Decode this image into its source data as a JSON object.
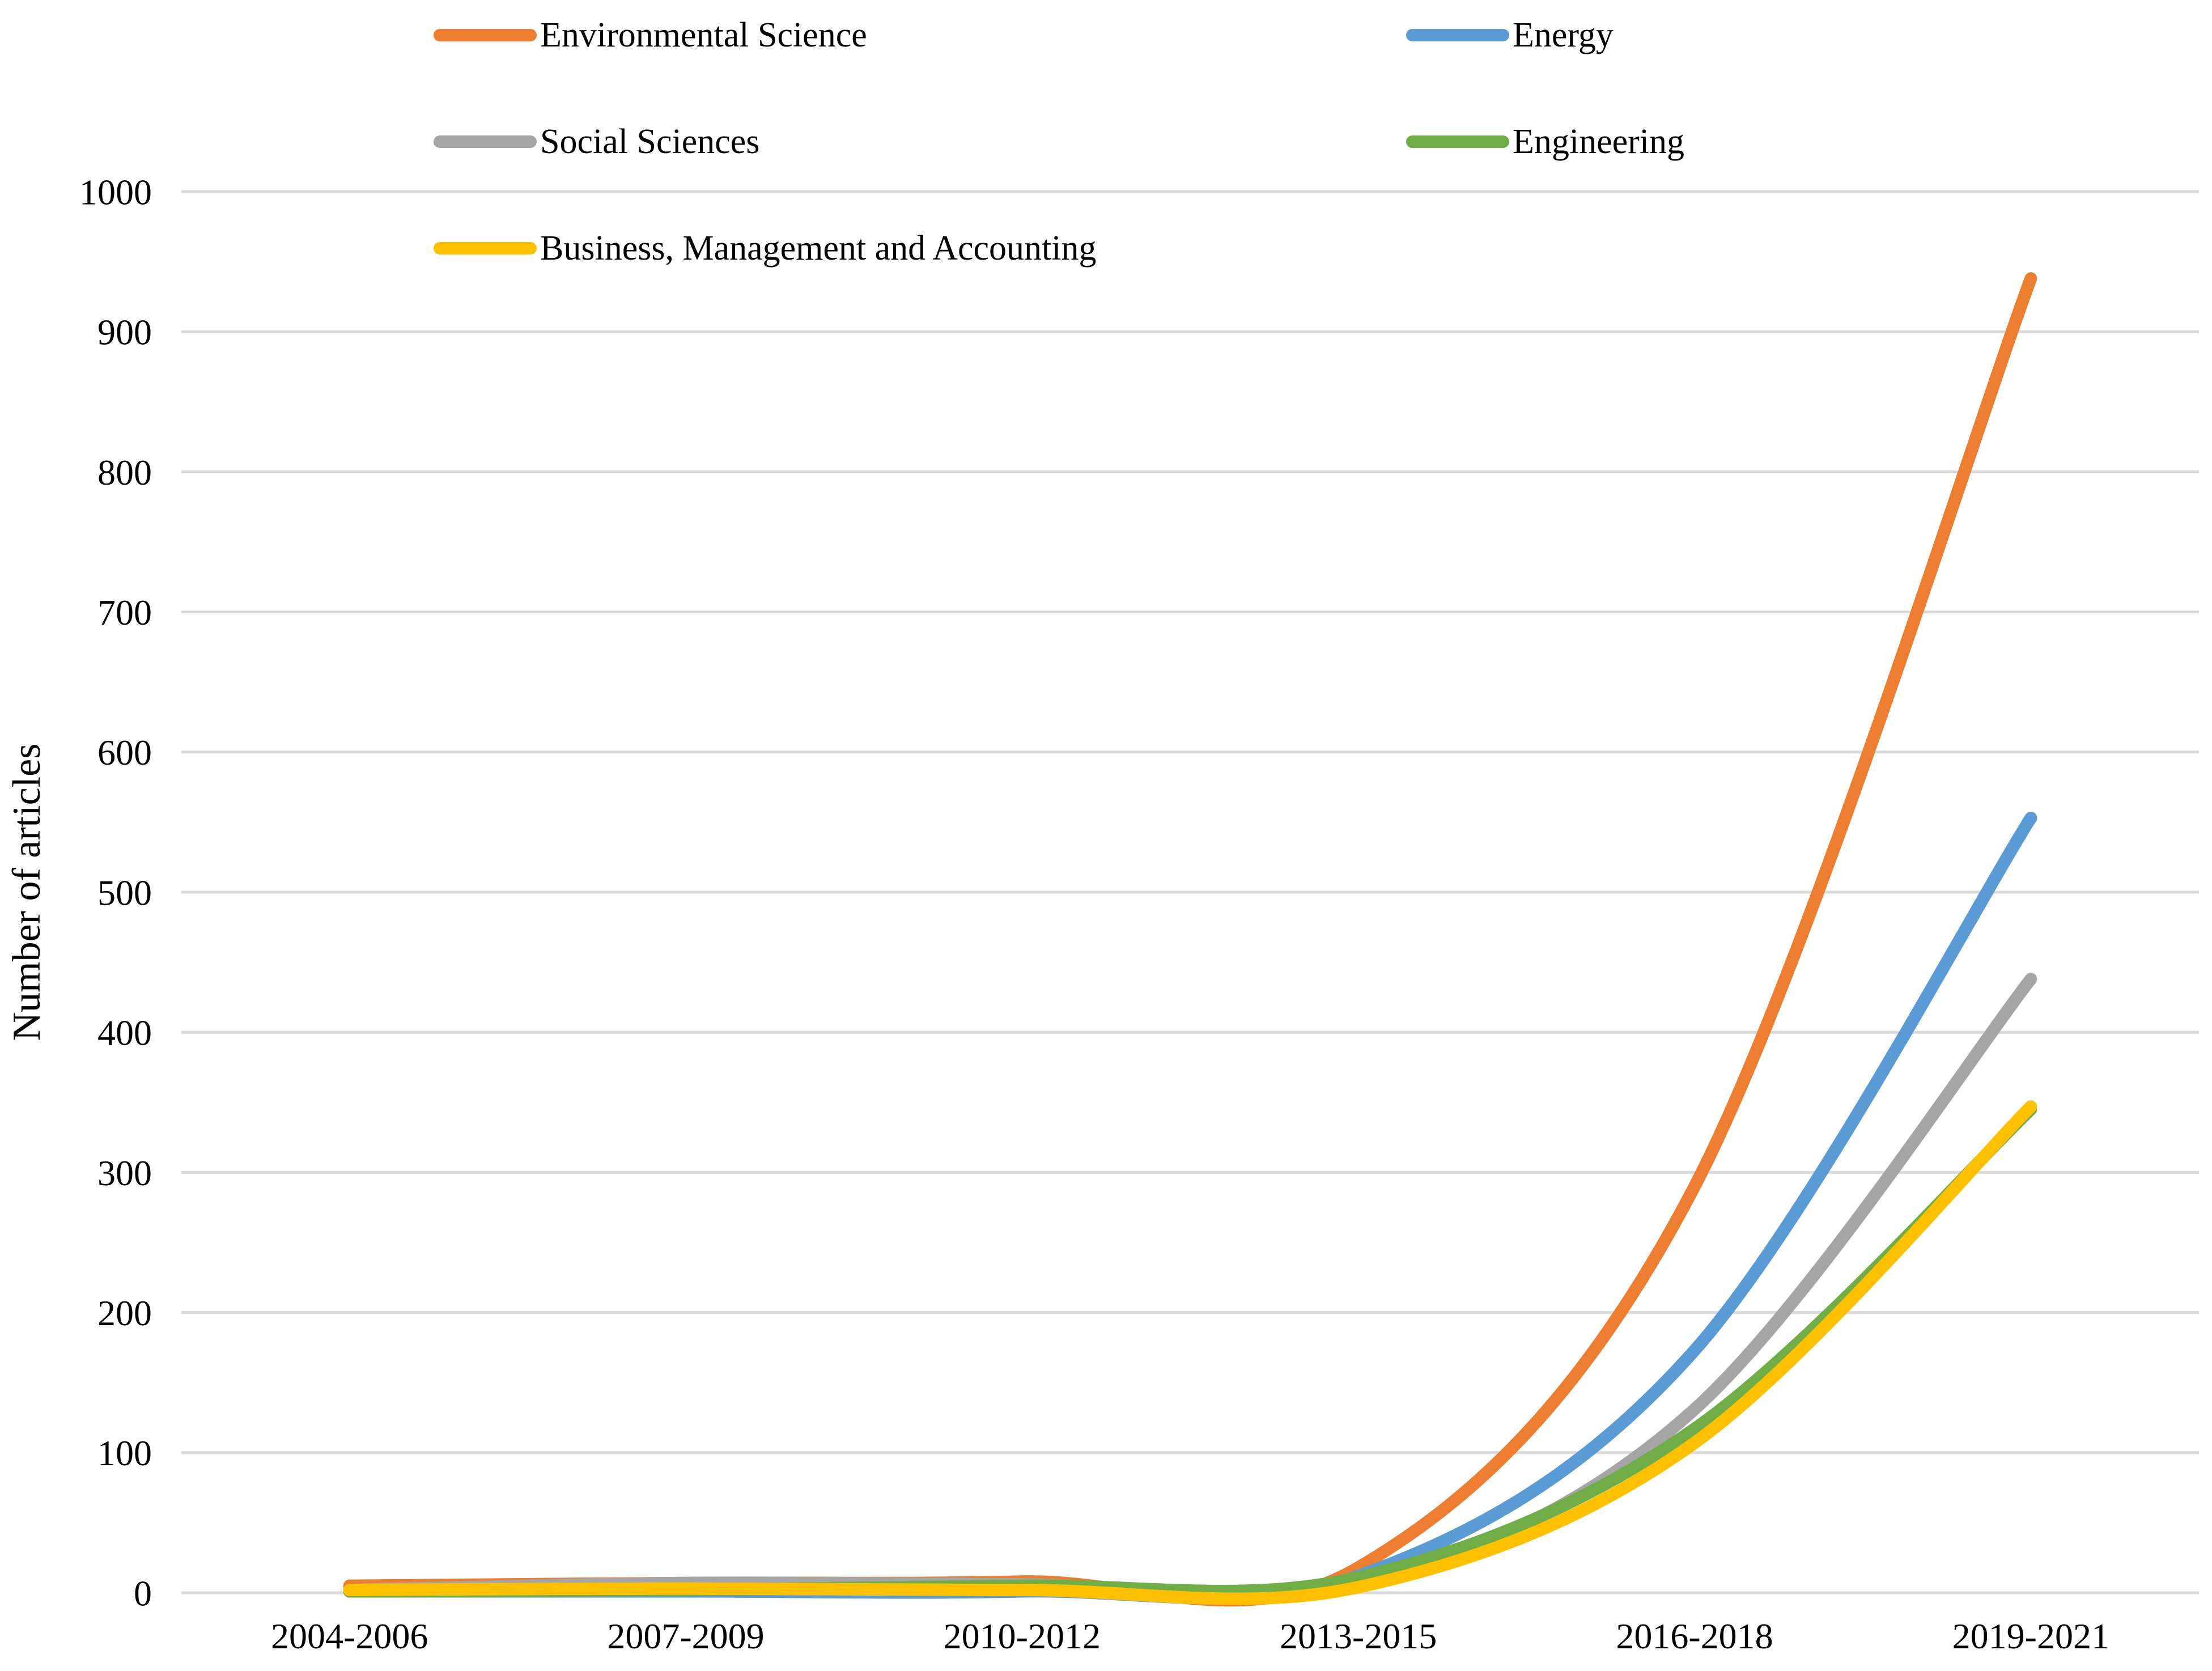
{
  "figure": {
    "background_color": "#FFFFFF",
    "text_color": "#000000",
    "ylabel": "Number of articles"
  },
  "chart_data": {
    "type": "line",
    "smooth": true,
    "title": "",
    "xlabel": "",
    "ylabel": "Number of articles",
    "categories": [
      "2004-2006",
      "2007-2009",
      "2010-2012",
      "2013-2015",
      "2016-2018",
      "2019-2021"
    ],
    "series": [
      {
        "name": "Environmental Science",
        "color": "#ED7D31",
        "values": [
          5,
          7,
          8,
          18,
          290,
          938
        ]
      },
      {
        "name": "Energy",
        "color": "#5B9BD5",
        "values": [
          1,
          1,
          1,
          12,
          173,
          553
        ]
      },
      {
        "name": "Social Sciences",
        "color": "#A5A5A5",
        "values": [
          2,
          7,
          6,
          6,
          131,
          438
        ]
      },
      {
        "name": "Engineering",
        "color": "#70AD47",
        "values": [
          1,
          2,
          5,
          11,
          117,
          345
        ]
      },
      {
        "name": "Business, Management and Accounting",
        "color": "#FFC000",
        "values": [
          2,
          3,
          2,
          4,
          107,
          347
        ]
      }
    ],
    "ylim": [
      0,
      1000
    ],
    "y_ticks": [
      0,
      100,
      200,
      300,
      400,
      500,
      600,
      700,
      800,
      900,
      1000
    ],
    "grid": "horizontal",
    "gridline_color": "#D9D9D9",
    "legend_position": "top",
    "legend_columns": 2
  }
}
